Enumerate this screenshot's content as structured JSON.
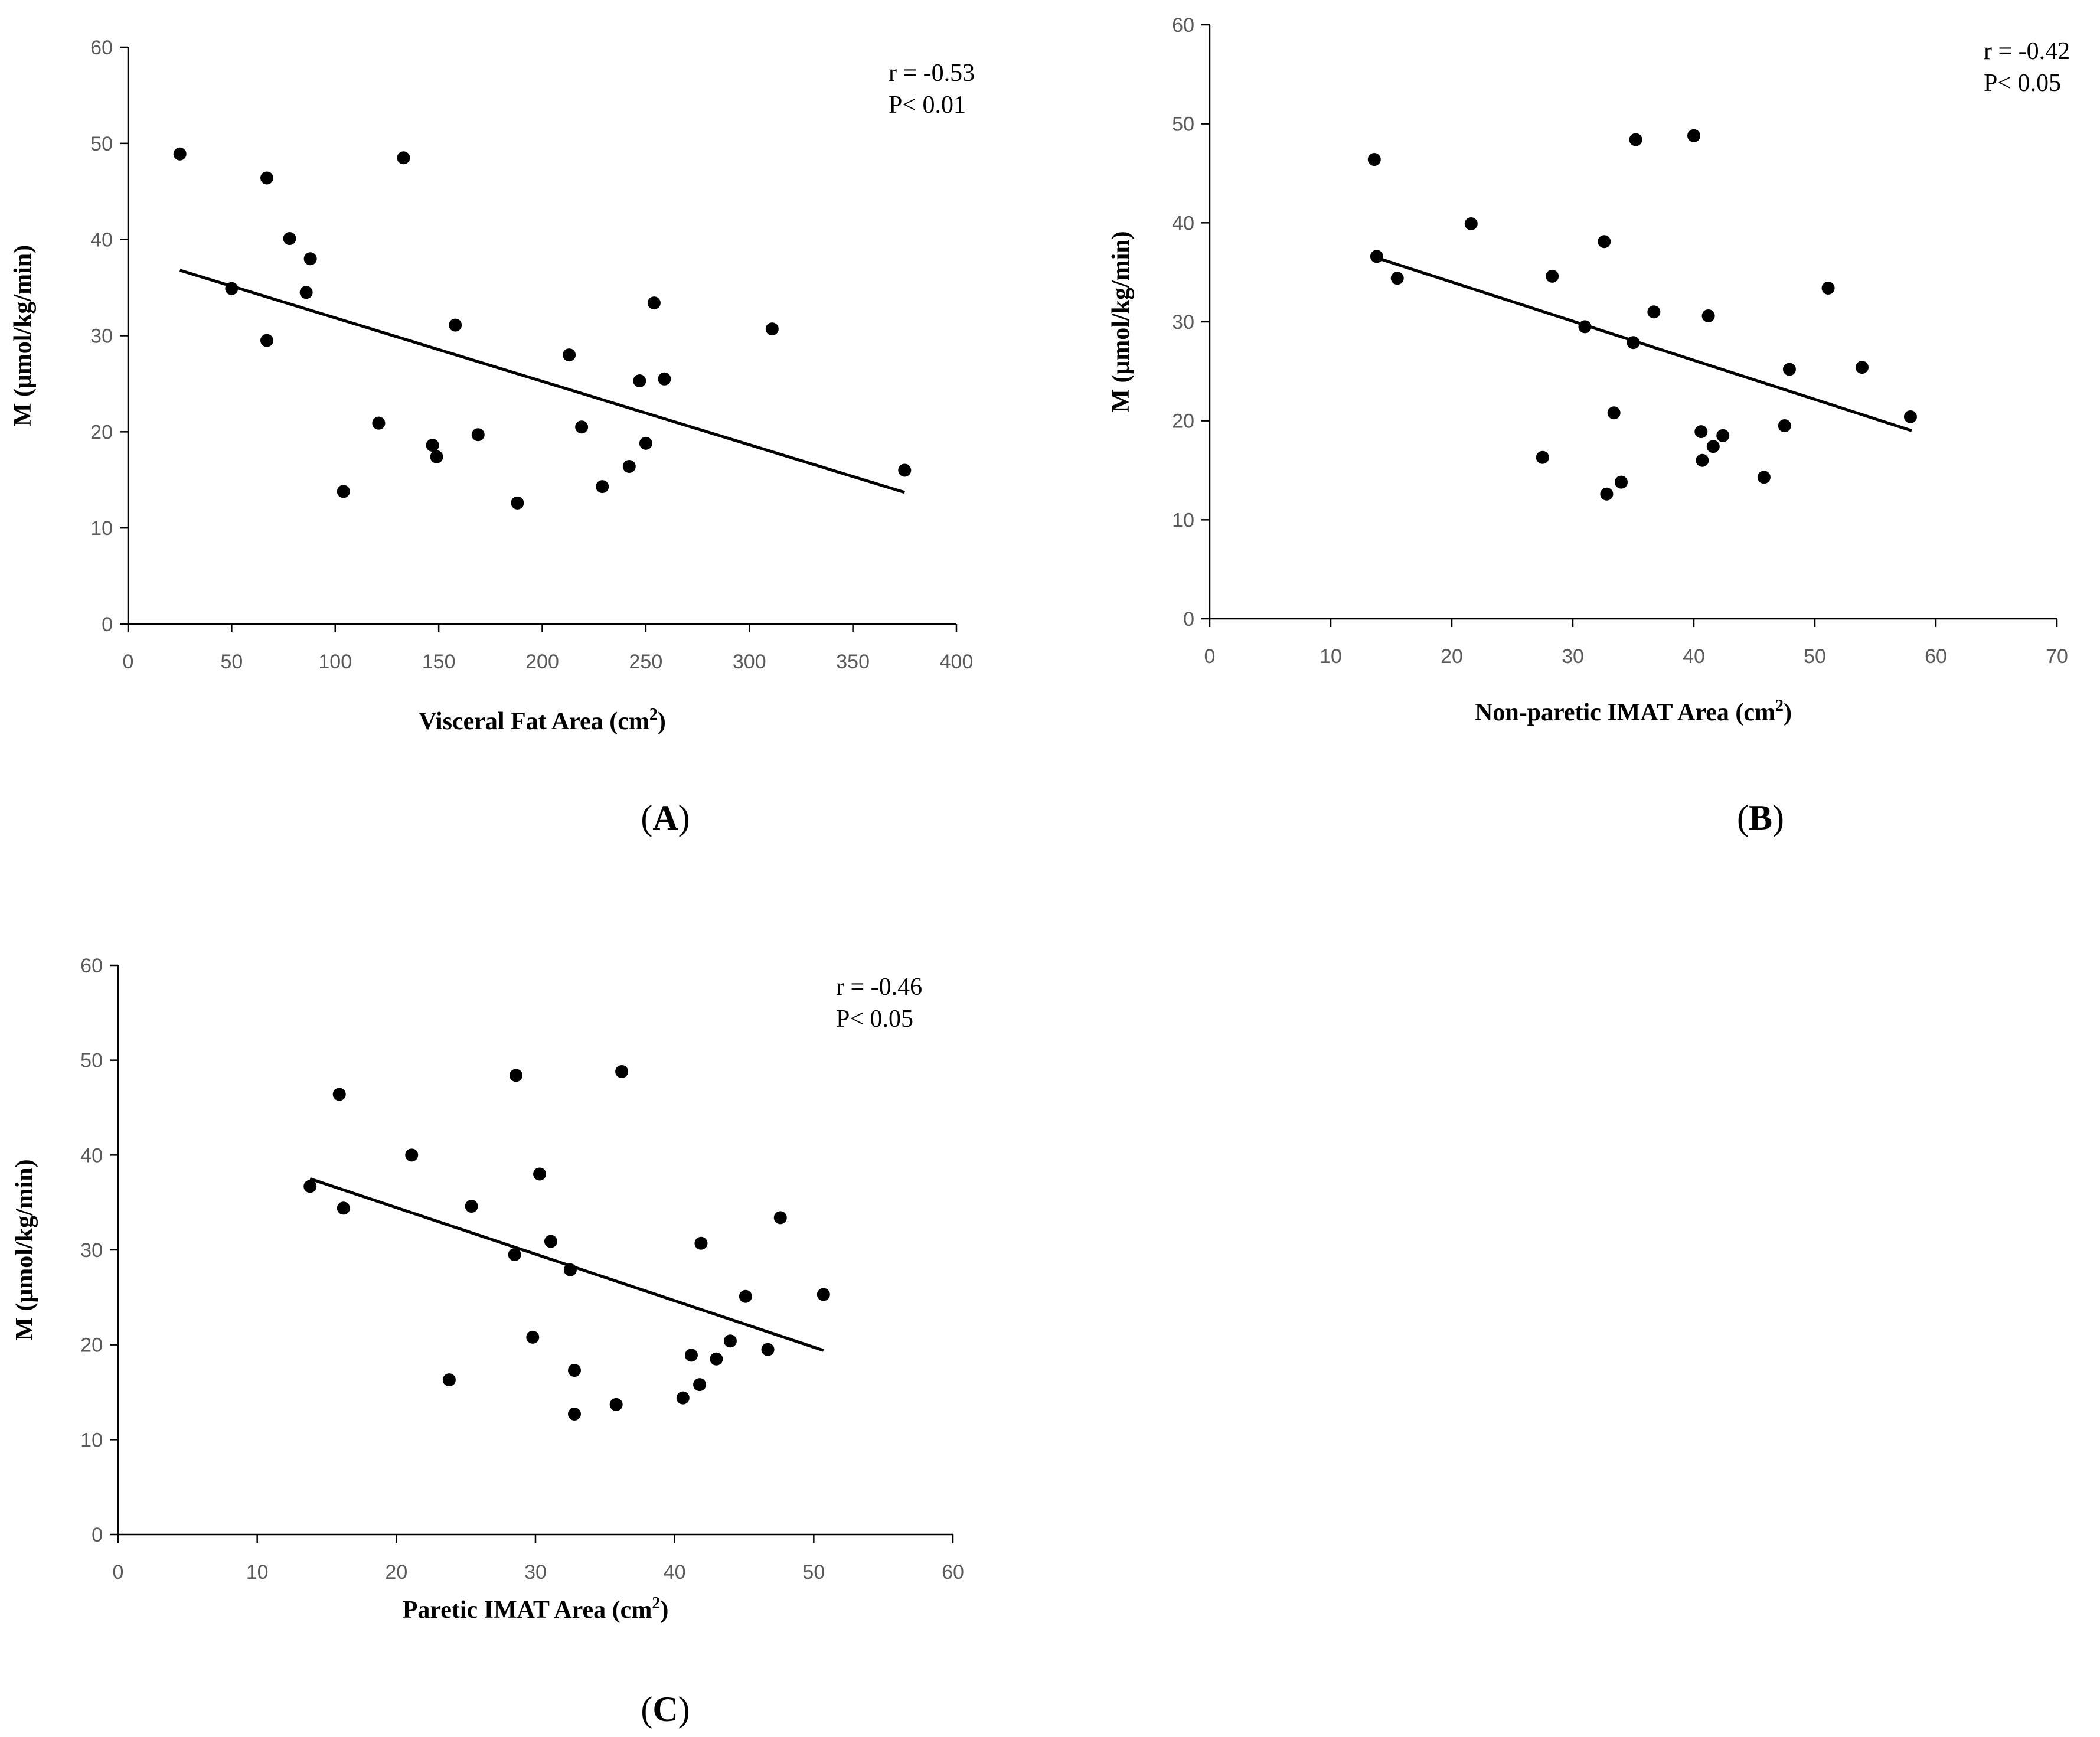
{
  "figure": {
    "colors": {
      "marker": "#000000",
      "axis": "#000000",
      "tick_text": "#595959"
    }
  },
  "chart_data": [
    {
      "type": "scatter",
      "panel_label": "A",
      "xlabel": "Visceral Fat Area",
      "xlabel_unit": "cm",
      "xlabel_sup": "2",
      "ylabel": "M (μmol/kg/min)",
      "xlim": [
        0,
        400
      ],
      "ylim": [
        0,
        60
      ],
      "xticks": [
        "0",
        "50",
        "100",
        "150",
        "200",
        "250",
        "300",
        "350",
        "400"
      ],
      "yticks": [
        "0",
        "10",
        "20",
        "30",
        "40",
        "50",
        "60"
      ],
      "annotation": [
        "r = -0.53",
        "P< 0.01"
      ],
      "trendline": {
        "x": [
          25,
          375
        ],
        "y": [
          36.8,
          13.7
        ]
      },
      "points": [
        [
          25,
          48.9
        ],
        [
          50,
          34.9
        ],
        [
          67,
          46.4
        ],
        [
          67,
          29.5
        ],
        [
          78,
          40.1
        ],
        [
          86,
          34.5
        ],
        [
          88,
          38.0
        ],
        [
          104,
          13.8
        ],
        [
          121,
          20.9
        ],
        [
          133,
          48.5
        ],
        [
          147,
          18.6
        ],
        [
          149,
          17.4
        ],
        [
          158,
          31.1
        ],
        [
          169,
          19.7
        ],
        [
          188,
          12.6
        ],
        [
          213,
          28.0
        ],
        [
          219,
          20.5
        ],
        [
          229,
          14.3
        ],
        [
          242,
          16.4
        ],
        [
          247,
          25.3
        ],
        [
          250,
          18.8
        ],
        [
          254,
          33.4
        ],
        [
          259,
          25.5
        ],
        [
          311,
          30.7
        ],
        [
          375,
          16.0
        ]
      ]
    },
    {
      "type": "scatter",
      "panel_label": "B",
      "xlabel": "Non-paretic IMAT Area",
      "xlabel_unit": "cm",
      "xlabel_sup": "2",
      "ylabel": "M (μmol/kg/min)",
      "xlim": [
        0,
        70
      ],
      "ylim": [
        0,
        60
      ],
      "xticks": [
        "0",
        "10",
        "20",
        "30",
        "40",
        "50",
        "60",
        "70"
      ],
      "yticks": [
        "0",
        "10",
        "20",
        "30",
        "40",
        "50",
        "60"
      ],
      "annotation": [
        "r = -0.42",
        "P< 0.05"
      ],
      "trendline": {
        "x": [
          13.7,
          58
        ],
        "y": [
          36.5,
          19.0
        ]
      },
      "points": [
        [
          13.6,
          46.4
        ],
        [
          13.8,
          36.6
        ],
        [
          15.5,
          34.4
        ],
        [
          21.6,
          39.9
        ],
        [
          27.5,
          16.3
        ],
        [
          28.3,
          34.6
        ],
        [
          31.0,
          29.5
        ],
        [
          32.6,
          38.1
        ],
        [
          32.8,
          12.6
        ],
        [
          33.4,
          20.8
        ],
        [
          34.0,
          13.8
        ],
        [
          35.0,
          27.9
        ],
        [
          35.2,
          48.4
        ],
        [
          36.7,
          31.0
        ],
        [
          40.0,
          48.8
        ],
        [
          40.6,
          18.9
        ],
        [
          40.7,
          16.0
        ],
        [
          41.2,
          30.6
        ],
        [
          41.6,
          17.4
        ],
        [
          42.4,
          18.5
        ],
        [
          45.8,
          14.3
        ],
        [
          47.5,
          19.5
        ],
        [
          47.9,
          25.2
        ],
        [
          51.1,
          33.4
        ],
        [
          53.9,
          25.4
        ],
        [
          57.9,
          20.4
        ]
      ]
    },
    {
      "type": "scatter",
      "panel_label": "C",
      "xlabel": "Paretic IMAT Area",
      "xlabel_unit": "cm",
      "xlabel_sup": "2",
      "ylabel": "M (μmol/kg/min)",
      "xlim": [
        0,
        60
      ],
      "ylim": [
        0,
        60
      ],
      "xticks": [
        "0",
        "10",
        "20",
        "30",
        "40",
        "50",
        "60"
      ],
      "yticks": [
        "0",
        "10",
        "20",
        "30",
        "40",
        "50",
        "60"
      ],
      "annotation": [
        "r = -0.46",
        "P< 0.05"
      ],
      "trendline": {
        "x": [
          13.8,
          50.7
        ],
        "y": [
          37.5,
          19.4
        ]
      },
      "points": [
        [
          13.8,
          36.7
        ],
        [
          15.9,
          46.4
        ],
        [
          16.2,
          34.4
        ],
        [
          21.1,
          40.0
        ],
        [
          23.8,
          16.3
        ],
        [
          25.4,
          34.6
        ],
        [
          28.5,
          29.5
        ],
        [
          28.6,
          48.4
        ],
        [
          29.8,
          20.8
        ],
        [
          30.3,
          38.0
        ],
        [
          31.1,
          30.9
        ],
        [
          32.5,
          27.9
        ],
        [
          32.8,
          17.3
        ],
        [
          32.8,
          12.7
        ],
        [
          35.8,
          13.7
        ],
        [
          36.2,
          48.8
        ],
        [
          40.6,
          14.4
        ],
        [
          41.2,
          18.9
        ],
        [
          41.8,
          15.8
        ],
        [
          41.9,
          30.7
        ],
        [
          43.0,
          18.5
        ],
        [
          44.0,
          20.4
        ],
        [
          45.1,
          25.1
        ],
        [
          46.7,
          19.5
        ],
        [
          47.6,
          33.4
        ],
        [
          50.7,
          25.3
        ]
      ]
    }
  ]
}
